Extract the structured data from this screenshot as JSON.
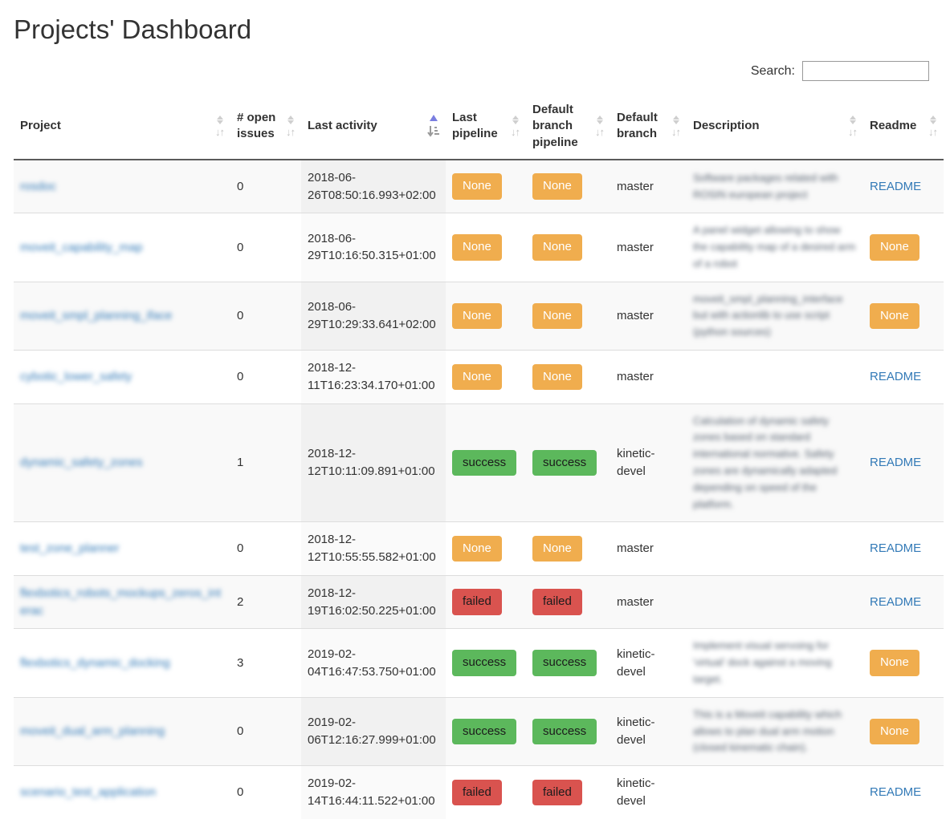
{
  "page": {
    "title": "Projects' Dashboard"
  },
  "search": {
    "label": "Search:",
    "value": "",
    "placeholder": ""
  },
  "colors": {
    "link_blue": "#337ab7",
    "badge_none_orange": "#f0ad4e",
    "badge_success_green": "#5cb85c",
    "badge_failed_red": "#d9534f",
    "sort_active_triangle": "#7a7ee0",
    "sorted_column_bg_striped": "#f1f1f1",
    "row_stripe_bg": "#f9f9f9"
  },
  "table": {
    "columns": [
      {
        "label": "Project",
        "sortable": true,
        "sorted": null
      },
      {
        "label": "# open issues",
        "sortable": true,
        "sorted": null
      },
      {
        "label": "Last activity",
        "sortable": true,
        "sorted": "asc"
      },
      {
        "label": "Last pipeline",
        "sortable": true,
        "sorted": null
      },
      {
        "label": "Default branch pipeline",
        "sortable": true,
        "sorted": null
      },
      {
        "label": "Default branch",
        "sortable": true,
        "sorted": null
      },
      {
        "label": "Description",
        "sortable": true,
        "sorted": null
      },
      {
        "label": "Readme",
        "sortable": true,
        "sorted": null
      }
    ],
    "rows": [
      {
        "project": "rosdoc",
        "project_blurred": true,
        "open_issues": "0",
        "last_activity": "2018-06-26T08:50:16.993+02:00",
        "last_pipeline": "None",
        "default_branch_pipeline": "None",
        "default_branch": "master",
        "description": "Software packages related with ROSIN european project",
        "description_blurred": true,
        "readme": "README"
      },
      {
        "project": "moveit_capability_map",
        "project_blurred": true,
        "open_issues": "0",
        "last_activity": "2018-06-29T10:16:50.315+01:00",
        "last_pipeline": "None",
        "default_branch_pipeline": "None",
        "default_branch": "master",
        "description": "A panel widget allowing to show the capability map of a desired arm of a robot",
        "description_blurred": true,
        "readme": "None"
      },
      {
        "project": "moveit_smpl_planning_iface",
        "project_blurred": true,
        "open_issues": "0",
        "last_activity": "2018-06-29T10:29:33.641+02:00",
        "last_pipeline": "None",
        "default_branch_pipeline": "None",
        "default_branch": "master",
        "description": "moveit_smpl_planning_interface but with actionlib to use script (python sources)",
        "description_blurred": true,
        "readme": "None"
      },
      {
        "project": "cybotic_lower_safety",
        "project_blurred": true,
        "open_issues": "0",
        "last_activity": "2018-12-11T16:23:34.170+01:00",
        "last_pipeline": "None",
        "default_branch_pipeline": "None",
        "default_branch": "master",
        "description": "",
        "description_blurred": true,
        "readme": "README"
      },
      {
        "project": "dynamic_safety_zones",
        "project_blurred": true,
        "open_issues": "1",
        "last_activity": "2018-12-12T10:11:09.891+01:00",
        "last_pipeline": "success",
        "default_branch_pipeline": "success",
        "default_branch": "kinetic-devel",
        "description": "Calculation of dynamic safety zones based on standard international normative. Safety zones are dynamically adapted depending on speed of the platform.",
        "description_blurred": true,
        "readme": "README"
      },
      {
        "project": "test_zone_planner",
        "project_blurred": true,
        "open_issues": "0",
        "last_activity": "2018-12-12T10:55:55.582+01:00",
        "last_pipeline": "None",
        "default_branch_pipeline": "None",
        "default_branch": "master",
        "description": "",
        "description_blurred": true,
        "readme": "README"
      },
      {
        "project": "flexbotics_robots_mockups_zeros_interac",
        "project_blurred": true,
        "open_issues": "2",
        "last_activity": "2018-12-19T16:02:50.225+01:00",
        "last_pipeline": "failed",
        "default_branch_pipeline": "failed",
        "default_branch": "master",
        "description": "",
        "description_blurred": true,
        "readme": "README"
      },
      {
        "project": "flexbotics_dynamic_docking",
        "project_blurred": true,
        "open_issues": "3",
        "last_activity": "2019-02-04T16:47:53.750+01:00",
        "last_pipeline": "success",
        "default_branch_pipeline": "success",
        "default_branch": "kinetic-devel",
        "description": "Implement visual servoing for 'virtual' dock against a moving target.",
        "description_blurred": true,
        "readme": "None"
      },
      {
        "project": "moveit_dual_arm_planning",
        "project_blurred": true,
        "open_issues": "0",
        "last_activity": "2019-02-06T12:16:27.999+01:00",
        "last_pipeline": "success",
        "default_branch_pipeline": "success",
        "default_branch": "kinetic-devel",
        "description": "This is a Moveit capability which allows to plan dual arm motion (closed kinematic chain).",
        "description_blurred": true,
        "readme": "None"
      },
      {
        "project": "scenario_test_application",
        "project_blurred": true,
        "open_issues": "0",
        "last_activity": "2019-02-14T16:44:11.522+01:00",
        "last_pipeline": "failed",
        "default_branch_pipeline": "failed",
        "default_branch": "kinetic-devel",
        "description": "",
        "description_blurred": true,
        "readme": "README"
      }
    ]
  }
}
